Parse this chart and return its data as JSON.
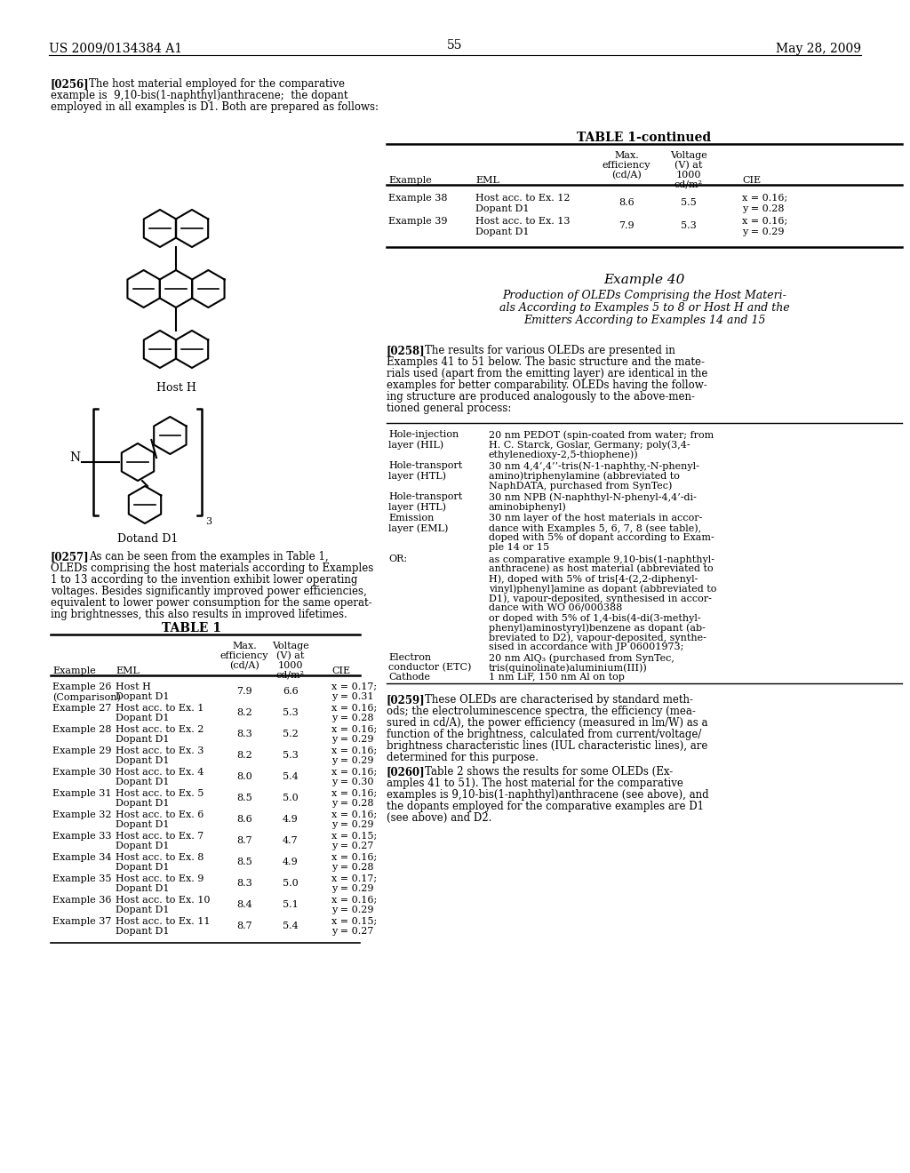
{
  "header_left": "US 2009/0134384 A1",
  "header_right": "May 28, 2009",
  "page_number": "55",
  "background_color": "#ffffff",
  "para_256_bold": "[0256]",
  "para_256_lines": [
    "The host material employed for the comparative",
    "example is  9,10-bis(1-naphthyl)anthracene;  the dopant",
    "employed in all examples is D1. Both are prepared as follows:"
  ],
  "host_h_label": "Host H",
  "dopant_d1_label": "Dotand D1",
  "para_257_bold": "[0257]",
  "para_257_lines": [
    "As can be seen from the examples in Table 1,",
    "OLEDs comprising the host materials according to Examples",
    "1 to 13 according to the invention exhibit lower operating",
    "voltages. Besides significantly improved power efficiencies,",
    "equivalent to lower power consumption for the same operat-",
    "ing brightnesses, this also results in improved lifetimes."
  ],
  "table1_title": "TABLE 1",
  "table1_rows": [
    [
      "Example 26",
      "(Comparison)",
      "Host H",
      "Dopant D1",
      "7.9",
      "6.6",
      "x = 0.17;",
      "y = 0.31"
    ],
    [
      "Example 27",
      "",
      "Host acc. to Ex. 1",
      "Dopant D1",
      "8.2",
      "5.3",
      "x = 0.16;",
      "y = 0.28"
    ],
    [
      "Example 28",
      "",
      "Host acc. to Ex. 2",
      "Dopant D1",
      "8.3",
      "5.2",
      "x = 0.16;",
      "y = 0.29"
    ],
    [
      "Example 29",
      "",
      "Host acc. to Ex. 3",
      "Dopant D1",
      "8.2",
      "5.3",
      "x = 0.16;",
      "y = 0.29"
    ],
    [
      "Example 30",
      "",
      "Host acc. to Ex. 4",
      "Dopant D1",
      "8.0",
      "5.4",
      "x = 0.16;",
      "y = 0.30"
    ],
    [
      "Example 31",
      "",
      "Host acc. to Ex. 5",
      "Dopant D1",
      "8.5",
      "5.0",
      "x = 0.16;",
      "y = 0.28"
    ],
    [
      "Example 32",
      "",
      "Host acc. to Ex. 6",
      "Dopant D1",
      "8.6",
      "4.9",
      "x = 0.16;",
      "y = 0.29"
    ],
    [
      "Example 33",
      "",
      "Host acc. to Ex. 7",
      "Dopant D1",
      "8.7",
      "4.7",
      "x = 0.15;",
      "y = 0.27"
    ],
    [
      "Example 34",
      "",
      "Host acc. to Ex. 8",
      "Dopant D1",
      "8.5",
      "4.9",
      "x = 0.16;",
      "y = 0.28"
    ],
    [
      "Example 35",
      "",
      "Host acc. to Ex. 9",
      "Dopant D1",
      "8.3",
      "5.0",
      "x = 0.17;",
      "y = 0.29"
    ],
    [
      "Example 36",
      "",
      "Host acc. to Ex. 10",
      "Dopant D1",
      "8.4",
      "5.1",
      "x = 0.16;",
      "y = 0.29"
    ],
    [
      "Example 37",
      "",
      "Host acc. to Ex. 11",
      "Dopant D1",
      "8.7",
      "5.4",
      "x = 0.15;",
      "y = 0.27"
    ]
  ],
  "table1_continued_title": "TABLE 1-continued",
  "table1_cont_rows": [
    [
      "Example 38",
      "",
      "Host acc. to Ex. 12",
      "Dopant D1",
      "8.6",
      "5.5",
      "x = 0.16;",
      "y = 0.28"
    ],
    [
      "Example 39",
      "",
      "Host acc. to Ex. 13",
      "Dopant D1",
      "7.9",
      "5.3",
      "x = 0.16;",
      "y = 0.29"
    ]
  ],
  "example40_title": "Example 40",
  "example40_subtitle_lines": [
    "Production of OLEDs Comprising the Host Materi-",
    "als According to Examples 5 to 8 or Host H and the",
    "Emitters According to Examples 14 and 15"
  ],
  "para_258_bold": "[0258]",
  "para_258_lines": [
    "The results for various OLEDs are presented in",
    "Examples 41 to 51 below. The basic structure and the mate-",
    "rials used (apart from the emitting layer) are identical in the",
    "examples for better comparability. OLEDs having the follow-",
    "ing structure are produced analogously to the above-men-",
    "tioned general process:"
  ],
  "oled_rows": [
    [
      "Hole-injection",
      "layer (HIL)",
      "20 nm PEDOT (spin-coated from water; from",
      "H. C. Starck, Goslar, Germany; poly(3,4-",
      "ethylenedioxy-2,5-thiophene))"
    ],
    [
      "Hole-transport",
      "layer (HTL)",
      "30 nm 4,4’,4’’-tris(N-1-naphthy,-N-phenyl-",
      "amino)triphenylamine (abbreviated to",
      "NaphDATA, purchased from SynTec)"
    ],
    [
      "Hole-transport",
      "layer (HTL)",
      "30 nm NPB (N-naphthyl-N-phenyl-4,4’-di-",
      "aminobiphenyl)"
    ],
    [
      "Emission",
      "layer (EML)",
      "30 nm layer of the host materials in accor-",
      "dance with Examples 5, 6, 7, 8 (see table),",
      "doped with 5% of dopant according to Exam-",
      "ple 14 or 15"
    ],
    [
      "OR:",
      "",
      "as comparative example 9,10-bis(1-naphthyl-",
      "anthracene) as host material (abbreviated to",
      "H), doped with 5% of tris[4-(2,2-diphenyl-",
      "vinyl)phenyl]amine as dopant (abbreviated to",
      "D1), vapour-deposited, synthesised in accor-",
      "dance with WO 06/000388",
      "or doped with 5% of 1,4-bis(4-di(3-methyl-",
      "phenyl)aminostyryl)benzene as dopant (ab-",
      "breviated to D2), vapour-deposited, synthe-",
      "sised in accordance with JP 06001973;"
    ],
    [
      "Electron",
      "conductor (ETC)",
      "Cathode",
      "20 nm AlQ₃ (purchased from SynTec,",
      "tris(quinolinate)aluminium(III))",
      "1 nm LiF, 150 nm Al on top"
    ]
  ],
  "para_259_bold": "[0259]",
  "para_259_lines": [
    "These OLEDs are characterised by standard meth-",
    "ods; the electroluminescence spectra, the efficiency (mea-",
    "sured in cd/A), the power efficiency (measured in lm/W) as a",
    "function of the brightness, calculated from current/voltage/",
    "brightness characteristic lines (IUL characteristic lines), are",
    "determined for this purpose."
  ],
  "para_260_bold": "[0260]",
  "para_260_lines": [
    "Table 2 shows the results for some OLEDs (Ex-",
    "amples 41 to 51). The host material for the comparative",
    "examples is 9,10-bis(1-naphthyl)anthracene (see above), and",
    "the dopants employed for the comparative examples are D1",
    "(see above) and D2."
  ]
}
